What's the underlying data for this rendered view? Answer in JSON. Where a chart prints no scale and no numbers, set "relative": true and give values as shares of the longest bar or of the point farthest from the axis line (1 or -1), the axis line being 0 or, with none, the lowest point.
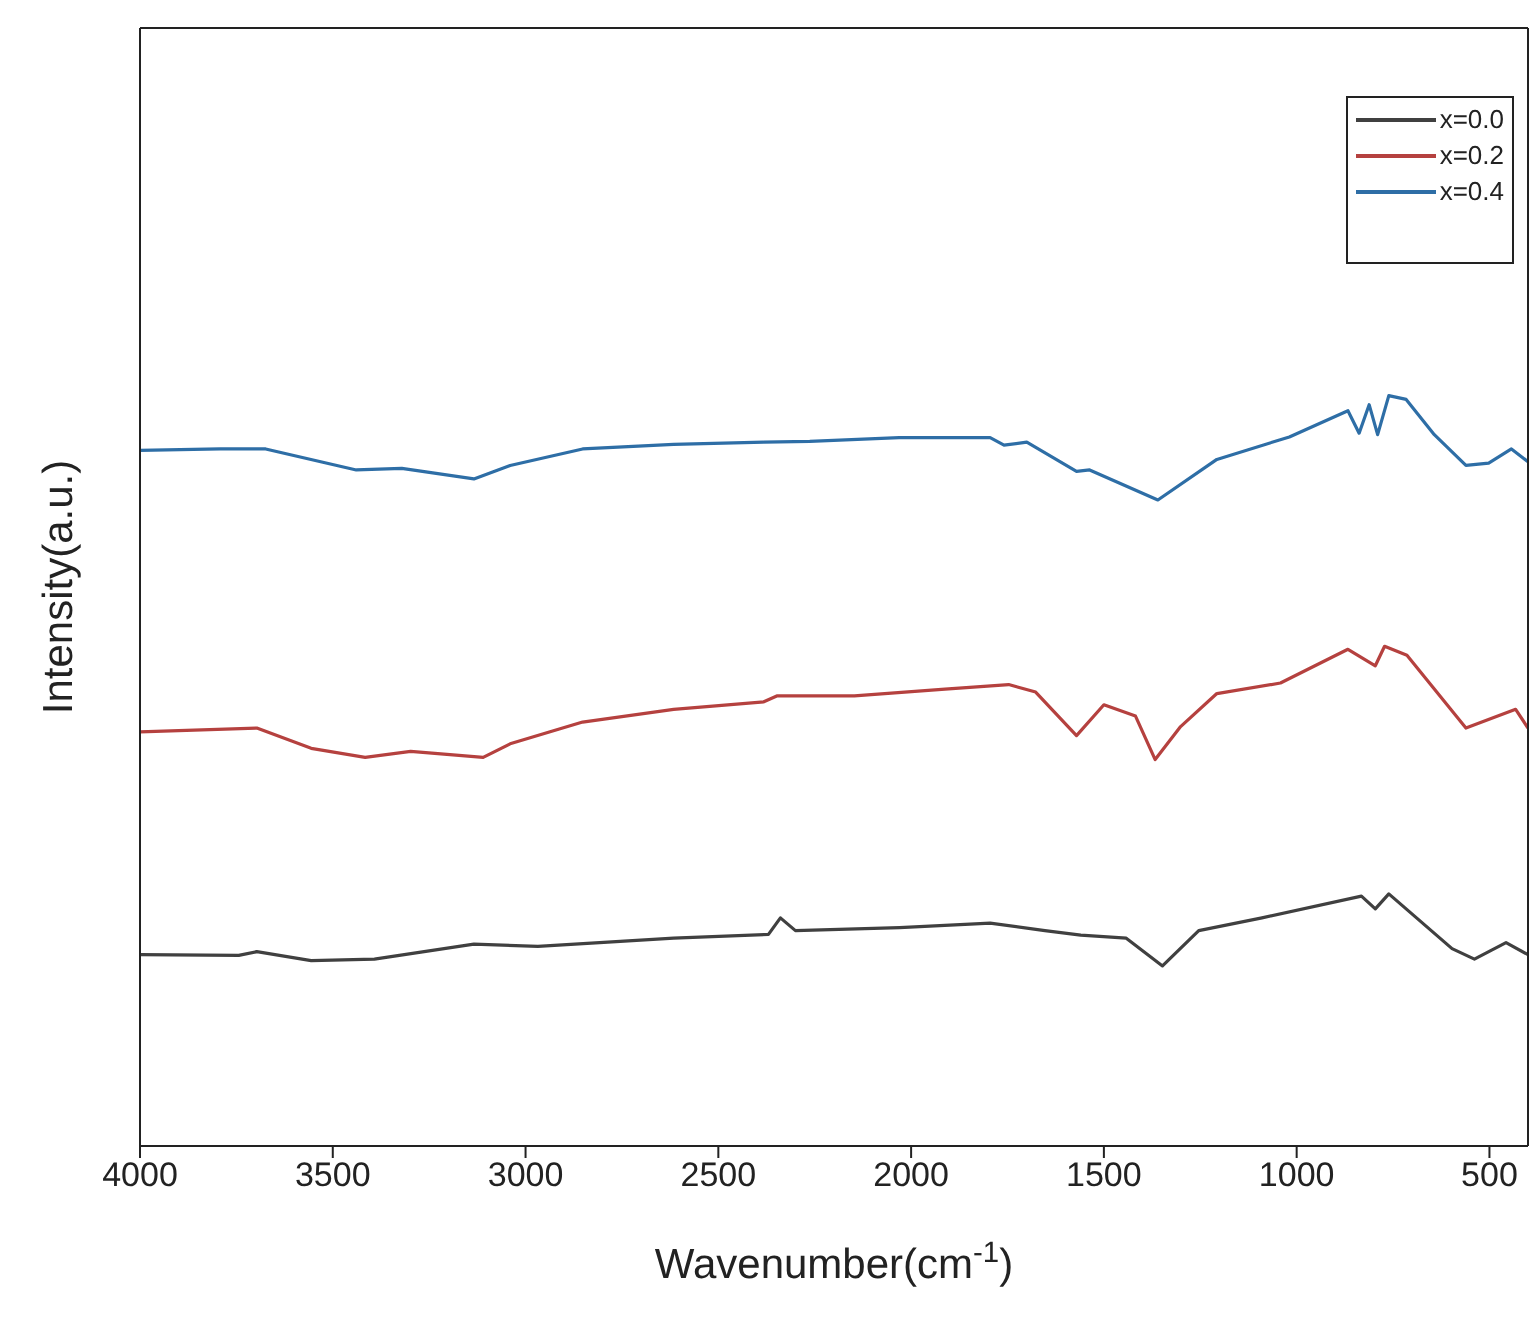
{
  "chart_data": {
    "type": "line",
    "xlabel": "Wavenumber(cm$^{-1}$)",
    "ylabel": "Intensity(a.u.)",
    "relative": true,
    "xlim": [
      4000,
      400
    ],
    "xticks": [
      4000,
      3500,
      3000,
      2500,
      2000,
      1500,
      1000,
      500
    ],
    "legend": "top right",
    "marker": "none",
    "line_style": "solid",
    "series": [
      {
        "name": "x=0.0",
        "color": "#404040",
        "x": [
          4000,
          3744,
          3697,
          3556,
          3392,
          3134,
          2968,
          2616,
          2370,
          2339,
          2300,
          2030,
          1795,
          1653,
          1560,
          1442,
          1348,
          1254,
          1090,
          832,
          796,
          761,
          597,
          539,
          457,
          400
        ],
        "values": [
          0.255,
          0.254,
          0.259,
          0.247,
          0.249,
          0.269,
          0.266,
          0.277,
          0.282,
          0.304,
          0.287,
          0.291,
          0.297,
          0.287,
          0.281,
          0.277,
          0.24,
          0.287,
          0.304,
          0.333,
          0.316,
          0.336,
          0.263,
          0.249,
          0.271,
          0.255
        ]
      },
      {
        "name": "x=0.2",
        "color": "#b5413f",
        "x": [
          4000,
          3697,
          3556,
          3416,
          3298,
          3110,
          3040,
          2852,
          2616,
          2382,
          2347,
          2147,
          1912,
          1747,
          1677,
          1571,
          1500,
          1418,
          1367,
          1301,
          1207,
          1042,
          867,
          796,
          772,
          714,
          561,
          432,
          400
        ],
        "values": [
          0.552,
          0.557,
          0.53,
          0.518,
          0.526,
          0.518,
          0.536,
          0.565,
          0.582,
          0.592,
          0.6,
          0.6,
          0.609,
          0.615,
          0.605,
          0.547,
          0.588,
          0.573,
          0.515,
          0.559,
          0.603,
          0.617,
          0.662,
          0.64,
          0.666,
          0.654,
          0.557,
          0.582,
          0.557
        ]
      },
      {
        "name": "x=0.4",
        "color": "#2e6ea6",
        "x": [
          4000,
          3792,
          3674,
          3439,
          3321,
          3134,
          3040,
          2852,
          2616,
          2382,
          2263,
          2031,
          1795,
          1759,
          1700,
          1571,
          1537,
          1360,
          1207,
          1019,
          867,
          838,
          812,
          790,
          761,
          716,
          643,
          561,
          502,
          443,
          400
        ],
        "values": [
          0.927,
          0.929,
          0.929,
          0.901,
          0.903,
          0.889,
          0.907,
          0.929,
          0.935,
          0.938,
          0.939,
          0.944,
          0.944,
          0.934,
          0.938,
          0.899,
          0.901,
          0.861,
          0.915,
          0.945,
          0.98,
          0.95,
          0.988,
          0.948,
          1.0,
          0.995,
          0.948,
          0.907,
          0.91,
          0.929,
          0.912
        ]
      }
    ]
  }
}
